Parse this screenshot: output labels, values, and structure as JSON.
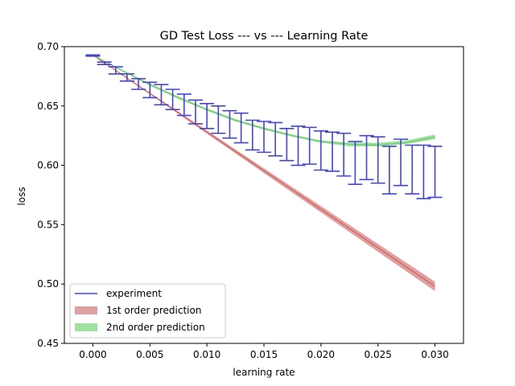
{
  "chart_data": {
    "type": "line",
    "title": "GD Test Loss --- vs --- Learning Rate",
    "xlabel": "learning rate",
    "ylabel": "loss",
    "xlim": [
      -0.0025,
      0.0325
    ],
    "ylim": [
      0.45,
      0.7
    ],
    "xticks": [
      0.0,
      0.005,
      0.01,
      0.015,
      0.02,
      0.025,
      0.03
    ],
    "xtick_labels": [
      "0.000",
      "0.005",
      "0.010",
      "0.015",
      "0.020",
      "0.025",
      "0.030"
    ],
    "yticks": [
      0.45,
      0.5,
      0.55,
      0.6,
      0.65,
      0.7
    ],
    "ytick_labels": [
      "0.45",
      "0.50",
      "0.55",
      "0.60",
      "0.65",
      "0.70"
    ],
    "grid": false,
    "legend_position": "lower-left",
    "legend": [
      "experiment",
      "1st order prediction",
      "2nd order prediction"
    ],
    "colors": {
      "experiment": "#4444cc",
      "first_order_band": "#e0a0a0",
      "first_order_line": "#d06060",
      "second_order_band": "#a0e0a0",
      "second_order_line": "#70cc70"
    },
    "series": [
      {
        "name": "experiment",
        "style": "errorbar",
        "x": [
          0.0,
          0.001,
          0.002,
          0.003,
          0.004,
          0.005,
          0.006,
          0.007,
          0.008,
          0.009,
          0.01,
          0.011,
          0.012,
          0.013,
          0.014,
          0.015,
          0.016,
          0.017,
          0.018,
          0.019,
          0.02,
          0.021,
          0.022,
          0.023,
          0.024,
          0.025,
          0.026,
          0.027,
          0.028,
          0.029,
          0.03
        ],
        "lower": [
          0.692,
          0.685,
          0.677,
          0.671,
          0.664,
          0.657,
          0.651,
          0.647,
          0.642,
          0.635,
          0.631,
          0.627,
          0.623,
          0.619,
          0.613,
          0.611,
          0.608,
          0.604,
          0.6,
          0.601,
          0.596,
          0.595,
          0.591,
          0.584,
          0.588,
          0.585,
          0.576,
          0.583,
          0.576,
          0.572,
          0.573
        ],
        "upper": [
          0.693,
          0.687,
          0.683,
          0.677,
          0.673,
          0.67,
          0.668,
          0.664,
          0.66,
          0.655,
          0.652,
          0.65,
          0.646,
          0.644,
          0.638,
          0.637,
          0.636,
          0.631,
          0.633,
          0.632,
          0.629,
          0.628,
          0.627,
          0.62,
          0.625,
          0.624,
          0.616,
          0.622,
          0.617,
          0.617,
          0.616
        ]
      },
      {
        "name": "1st order prediction",
        "style": "band",
        "x": [
          0.0,
          0.03
        ],
        "center": [
          0.693,
          0.498
        ],
        "lower": [
          0.693,
          0.494
        ],
        "upper": [
          0.693,
          0.502
        ]
      },
      {
        "name": "2nd order prediction",
        "style": "band",
        "x": [
          0.0,
          0.0025,
          0.005,
          0.0075,
          0.01,
          0.0125,
          0.015,
          0.0175,
          0.02,
          0.0225,
          0.025,
          0.0275,
          0.03
        ],
        "center": [
          0.693,
          0.68,
          0.668,
          0.657,
          0.647,
          0.638,
          0.631,
          0.625,
          0.62,
          0.618,
          0.617,
          0.619,
          0.624
        ],
        "lower": [
          0.693,
          0.68,
          0.667,
          0.656,
          0.646,
          0.637,
          0.63,
          0.624,
          0.619,
          0.616,
          0.616,
          0.618,
          0.622
        ],
        "upper": [
          0.693,
          0.681,
          0.669,
          0.658,
          0.648,
          0.639,
          0.632,
          0.626,
          0.621,
          0.619,
          0.619,
          0.621,
          0.626
        ]
      }
    ]
  }
}
